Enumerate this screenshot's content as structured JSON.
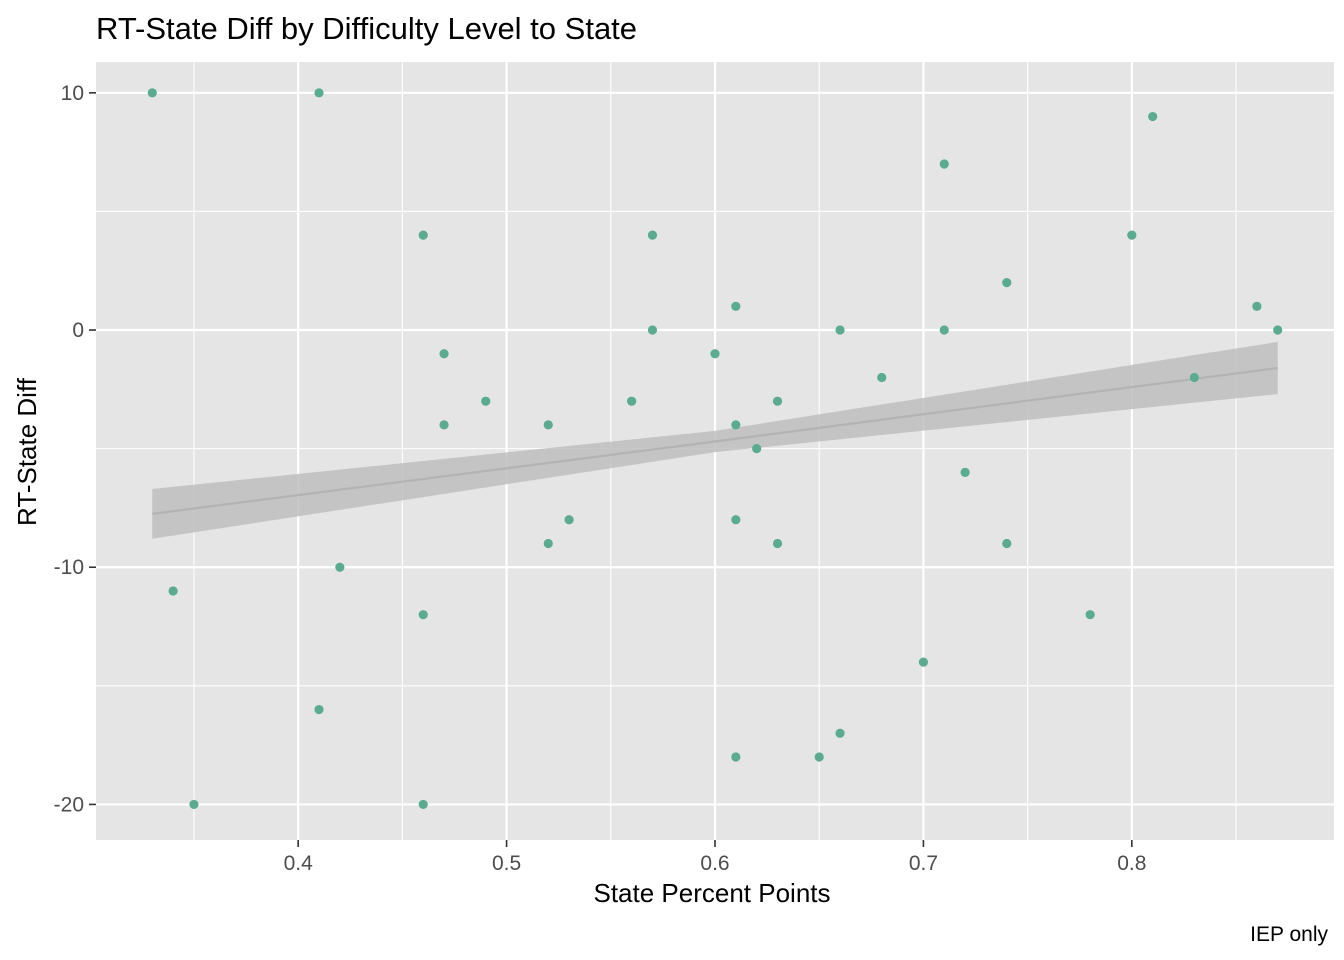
{
  "chart_data": {
    "type": "scatter",
    "title": "RT-State Diff by Difficulty Level to State",
    "xlabel": "State Percent Points",
    "ylabel": "RT-State Diff",
    "caption": "IEP only",
    "xlim": [
      0.303,
      0.897
    ],
    "ylim": [
      -21.5,
      11.3
    ],
    "x_ticks": [
      0.4,
      0.5,
      0.6,
      0.7,
      0.8
    ],
    "x_tick_labels": [
      "0.4",
      "0.5",
      "0.6",
      "0.7",
      "0.8"
    ],
    "y_ticks": [
      -20,
      -10,
      0,
      10
    ],
    "y_tick_labels": [
      "-20",
      "-10",
      "0",
      "10"
    ],
    "grid": true,
    "point_color": "#5aab8f",
    "panel_color": "#e5e5e5",
    "grid_color": "#ffffff",
    "ribbon_color": "#bebebe",
    "line_color": "#b3b3b3",
    "points": [
      {
        "x": 0.33,
        "y": 10
      },
      {
        "x": 0.41,
        "y": 10
      },
      {
        "x": 0.81,
        "y": 9
      },
      {
        "x": 0.71,
        "y": 7
      },
      {
        "x": 0.46,
        "y": 4
      },
      {
        "x": 0.57,
        "y": 4
      },
      {
        "x": 0.8,
        "y": 4
      },
      {
        "x": 0.74,
        "y": 2
      },
      {
        "x": 0.61,
        "y": 1
      },
      {
        "x": 0.86,
        "y": 1
      },
      {
        "x": 0.57,
        "y": 0
      },
      {
        "x": 0.66,
        "y": 0
      },
      {
        "x": 0.71,
        "y": 0
      },
      {
        "x": 0.87,
        "y": 0
      },
      {
        "x": 0.47,
        "y": -1
      },
      {
        "x": 0.6,
        "y": -1
      },
      {
        "x": 0.68,
        "y": -2
      },
      {
        "x": 0.83,
        "y": -2
      },
      {
        "x": 0.49,
        "y": -3
      },
      {
        "x": 0.56,
        "y": -3
      },
      {
        "x": 0.63,
        "y": -3
      },
      {
        "x": 0.47,
        "y": -4
      },
      {
        "x": 0.52,
        "y": -4
      },
      {
        "x": 0.61,
        "y": -4
      },
      {
        "x": 0.62,
        "y": -5
      },
      {
        "x": 0.72,
        "y": -6
      },
      {
        "x": 0.53,
        "y": -8
      },
      {
        "x": 0.61,
        "y": -8
      },
      {
        "x": 0.52,
        "y": -9
      },
      {
        "x": 0.63,
        "y": -9
      },
      {
        "x": 0.74,
        "y": -9
      },
      {
        "x": 0.42,
        "y": -10
      },
      {
        "x": 0.34,
        "y": -11
      },
      {
        "x": 0.46,
        "y": -12
      },
      {
        "x": 0.78,
        "y": -12
      },
      {
        "x": 0.7,
        "y": -14
      },
      {
        "x": 0.41,
        "y": -16
      },
      {
        "x": 0.66,
        "y": -17
      },
      {
        "x": 0.61,
        "y": -18
      },
      {
        "x": 0.65,
        "y": -18
      },
      {
        "x": 0.35,
        "y": -20
      },
      {
        "x": 0.46,
        "y": -20
      }
    ],
    "trend": {
      "x": [
        0.33,
        0.6,
        0.87
      ],
      "y": [
        -7.75,
        -4.7,
        -1.6
      ],
      "lower": [
        -8.8,
        -5.15,
        -2.7
      ],
      "upper": [
        -6.7,
        -4.25,
        -0.5
      ]
    }
  }
}
